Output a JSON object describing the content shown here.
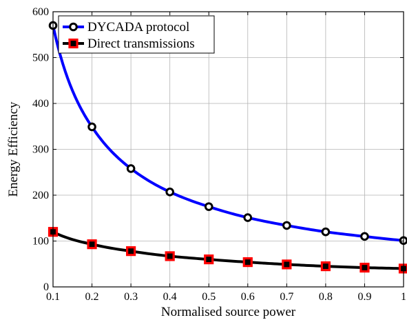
{
  "chart_data": {
    "type": "line",
    "xlabel": "Normalised source power",
    "ylabel": "Energy Efficiency",
    "xlim": [
      0.1,
      1
    ],
    "ylim": [
      0,
      600
    ],
    "x_ticks": [
      "0.1",
      "0.2",
      "0.3",
      "0.4",
      "0.5",
      "0.6",
      "0.7",
      "0.8",
      "0.9",
      "1"
    ],
    "y_ticks": [
      "0",
      "100",
      "200",
      "300",
      "400",
      "500",
      "600"
    ],
    "grid": true,
    "legend_position": "top-left",
    "x": [
      0.1,
      0.2,
      0.3,
      0.4,
      0.5,
      0.6,
      0.7,
      0.8,
      0.9,
      1.0
    ],
    "series": [
      {
        "name": "DYCADA protocol",
        "color": "#0000ff",
        "marker": "circle",
        "values": [
          570,
          349,
          258,
          207,
          175,
          151,
          134,
          120,
          110,
          101
        ]
      },
      {
        "name": "Direct transmissions",
        "color": "#000000",
        "marker": "square",
        "marker_color": "#ff0000",
        "values": [
          120,
          93,
          78,
          67,
          60,
          54,
          49,
          45,
          42,
          40
        ]
      }
    ]
  }
}
